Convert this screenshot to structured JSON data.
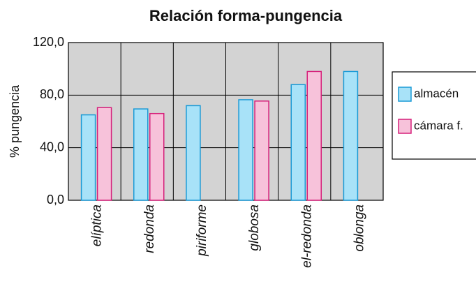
{
  "chart_data": {
    "type": "bar",
    "title": "Relación forma-pungencia",
    "y_label": "% pungencia",
    "categories": [
      "elíptica",
      "redonda",
      "piriforme",
      "globosa",
      "el-redonda",
      "oblonga"
    ],
    "series": [
      {
        "name": "almacén",
        "color": "#a8e2f8",
        "values": [
          65,
          69.5,
          72,
          76.5,
          88,
          98
        ]
      },
      {
        "name": "cámara f.",
        "color": "#f7c2da",
        "values": [
          70.5,
          66,
          null,
          75.5,
          98,
          null
        ]
      }
    ],
    "ylim": [
      0,
      120
    ],
    "yticks": [
      {
        "value": 0,
        "label": "0,0"
      },
      {
        "value": 40,
        "label": "40,0"
      },
      {
        "value": 80,
        "label": "80,0"
      },
      {
        "value": 120,
        "label": "120,0"
      }
    ],
    "grid": true,
    "legend": "right"
  }
}
